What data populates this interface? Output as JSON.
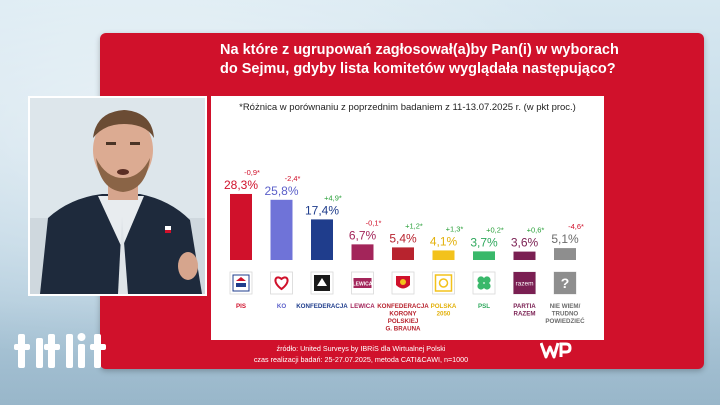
{
  "question": "Na które z ugrupowań zagłosował(a)by Pan(i) w wyborach do Sejmu, gdyby lista komitetów wyglądała następująco?",
  "note": "*Różnica w porównaniu z poprzednim badaniem z 11-13.07.2025 r. (w pkt proc.)",
  "source_line1": "źródło: United Surveys by IBRiS dla Wirtualnej Polski",
  "source_line2": "czas realizacji badań: 25-27.07.2025, metoda CATI&CAWI, n=1000",
  "broadcaster_logo": "wp-logo",
  "channel_logo": "tvp-info-logo",
  "chart_data": {
    "type": "bar",
    "title": "Na które z ugrupowań zagłosował(a)by Pan(i) w wyborach do Sejmu, gdyby lista komitetów wyglądała następująco?",
    "ylim": [
      0,
      30
    ],
    "grid": false,
    "categories": [
      "PiS",
      "KO",
      "KONFEDERACJA",
      "LEWICA",
      "KONFEDERACJA KORONY POLSKIEJ G. BRAUNA",
      "POLSKA 2050",
      "PSL",
      "PARTIA RAZEM",
      "NIE WIEM/ TRUDNO POWIEDZIEĆ"
    ],
    "bars": [
      {
        "label": "PIS",
        "value": 28.3,
        "value_text": "28,3%",
        "change": "-0,9*",
        "color": "#d0112b",
        "label_color": "#d0112b",
        "logo": "pis-logo"
      },
      {
        "label": "KO",
        "value": 25.8,
        "value_text": "25,8%",
        "change": "-2,4*",
        "color": "#6f73d8",
        "label_color": "#5a5fc9",
        "logo": "ko-heart-logo"
      },
      {
        "label": "KONFEDERACJA",
        "value": 17.4,
        "value_text": "17,4%",
        "change": "+4,9*",
        "color": "#1f3d8c",
        "label_color": "#1f3d8c",
        "logo": "konfederacja-logo"
      },
      {
        "label": "LEWICA",
        "value": 6.7,
        "value_text": "6,7%",
        "change": "-0,1*",
        "color": "#a3255a",
        "label_color": "#a3255a",
        "logo": "lewica-logo"
      },
      {
        "label": "KONFEDERACJA KORONY POLSKIEJ G. BRAUNA",
        "value": 5.4,
        "value_text": "5,4%",
        "change": "+1,2*",
        "color": "#b8232e",
        "label_color": "#b8232e",
        "logo": "kkp-logo"
      },
      {
        "label": "POLSKA 2050",
        "value": 4.1,
        "value_text": "4,1%",
        "change": "+1,3*",
        "color": "#f3c21b",
        "label_color": "#e3b10c",
        "logo": "polska2050-logo"
      },
      {
        "label": "PSL",
        "value": 3.7,
        "value_text": "3,7%",
        "change": "+0,2*",
        "color": "#39b86a",
        "label_color": "#2fa85d",
        "logo": "psl-clover-logo"
      },
      {
        "label": "PARTIA RAZEM",
        "value": 3.6,
        "value_text": "3,6%",
        "change": "+0,6*",
        "color": "#7a1f52",
        "label_color": "#7a1f52",
        "logo": "razem-logo"
      },
      {
        "label": "NIE WIEM/ TRUDNO POWIEDZIEĆ",
        "value": 5.1,
        "value_text": "5,1%",
        "change": "-4,6*",
        "color": "#8e8e8e",
        "label_color": "#6b6b6b",
        "logo": "question-mark-logo"
      }
    ],
    "axis_label_lines": [
      [
        "PIS"
      ],
      [
        "KO"
      ],
      [
        "KONFEDERACJA"
      ],
      [
        "LEWICA"
      ],
      [
        "KONFEDERACJA",
        "KORONY",
        "POLSKIEJ",
        "G. BRAUNA"
      ],
      [
        "POLSKA",
        "2050"
      ],
      [
        "PSL"
      ],
      [
        "PARTIA",
        "RAZEM"
      ],
      [
        "NIE WIEM/",
        "TRUDNO",
        "POWIEDZIEĆ"
      ]
    ],
    "logo_text": {
      "lewica": "LEWICA",
      "razem": "razem",
      "unknown": "?"
    },
    "change_colors": {
      "positive": "#2aa03a",
      "negative": "#d0112b"
    }
  }
}
